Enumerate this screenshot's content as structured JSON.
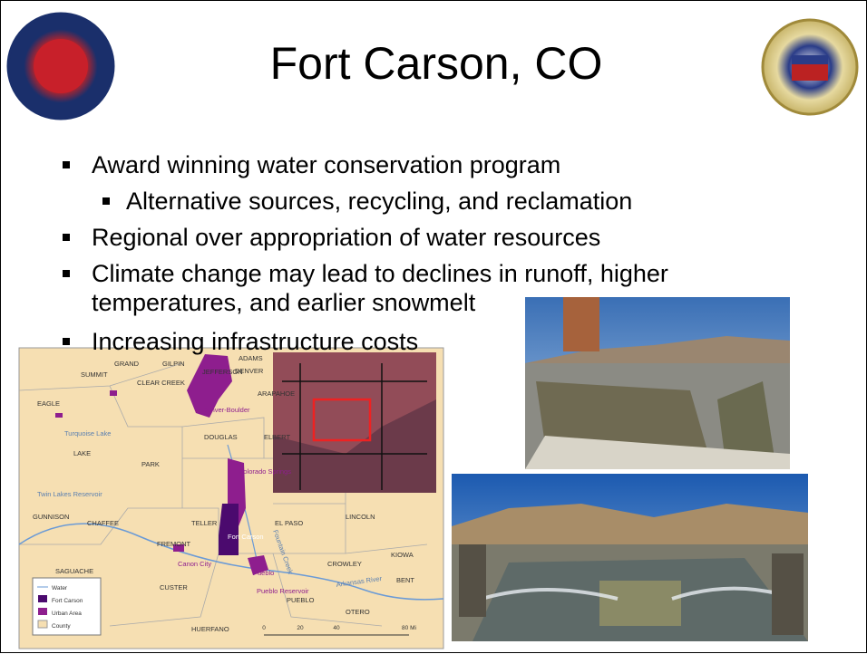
{
  "slide": {
    "title": "Fort Carson, CO",
    "bullets": [
      {
        "text": "Award winning water conservation program",
        "sub": [
          "Alternative sources, recycling, and reclamation"
        ]
      },
      {
        "text": "Regional over appropriation of water resources"
      },
      {
        "text": [
          "Climate change may lead to declines in runoff, higher",
          "temperatures, and earlier snowmelt"
        ]
      },
      {
        "text": "Increasing infrastructure costs"
      }
    ],
    "map": {
      "labels": [
        "GRAND",
        "GILPIN",
        "ADAMS",
        "SUMMIT",
        "JEFFERSON",
        "DENVER",
        "CLEAR CREEK",
        "ARAPAHOE",
        "EAGLE",
        "Denver-Boulder",
        "DOUGLAS",
        "ELBERT",
        "Turquoise Lake",
        "LAKE",
        "PARK",
        "Colorado Springs",
        "Twin Lakes Reservoir",
        "GUNNISON",
        "CHAFFEE",
        "TELLER",
        "EL PASO",
        "LINCOLN",
        "Fort Carson",
        "FREMONT",
        "Canon City",
        "CROWLEY",
        "KIOWA",
        "SAGUACHE",
        "Pueblo",
        "BENT",
        "CUSTER",
        "Pueblo Reservoir",
        "PUEBLO",
        "OTERO",
        "HUERFANO",
        "Fountain Creek",
        "Arkansas River"
      ],
      "legend": [
        "Water",
        "Fort Carson",
        "Urban Area",
        "County"
      ],
      "scale": [
        "0",
        "20",
        "40",
        "80 Mi"
      ]
    }
  }
}
